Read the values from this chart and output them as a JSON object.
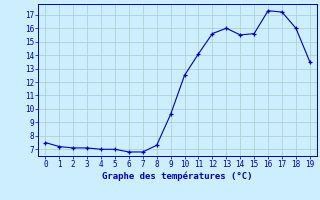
{
  "x": [
    0,
    1,
    2,
    3,
    4,
    5,
    6,
    7,
    8,
    9,
    10,
    11,
    12,
    13,
    14,
    15,
    16,
    17,
    18,
    19
  ],
  "y": [
    7.5,
    7.2,
    7.1,
    7.1,
    7.0,
    7.0,
    6.8,
    6.8,
    7.3,
    9.6,
    12.5,
    14.1,
    15.6,
    16.0,
    15.5,
    15.6,
    17.3,
    17.2,
    16.0,
    13.5
  ],
  "xlabel": "Graphe des températures (°C)",
  "ylim": [
    6.5,
    17.8
  ],
  "xlim": [
    -0.5,
    19.5
  ],
  "yticks": [
    7,
    8,
    9,
    10,
    11,
    12,
    13,
    14,
    15,
    16,
    17
  ],
  "xticks": [
    0,
    1,
    2,
    3,
    4,
    5,
    6,
    7,
    8,
    9,
    10,
    11,
    12,
    13,
    14,
    15,
    16,
    17,
    18,
    19
  ],
  "line_color": "#0000bb",
  "marker_color": "#0000bb",
  "bg_color": "#cceeff",
  "grid_color": "#aacccc",
  "axis_color": "#0000bb",
  "tick_label_color": "#0000bb",
  "xlabel_color": "#0000bb",
  "tick_fontsize": 5.5,
  "xlabel_fontsize": 6.5
}
